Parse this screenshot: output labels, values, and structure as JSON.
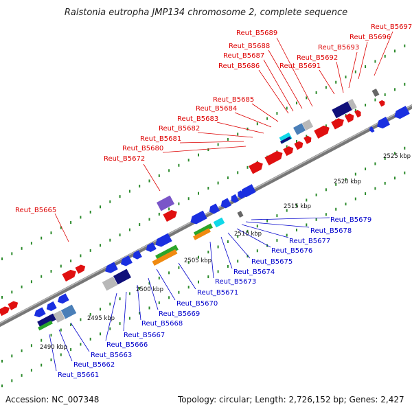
{
  "title": "Ralstonia eutropha JMP134 chromosome 2, complete sequence",
  "footer": {
    "accession": "Accession: NC_007348",
    "info": "Topology: circular; Length: 2,726,152 bp; Genes: 2,427"
  },
  "colors": {
    "label_top": "#dd0000",
    "label_bottom": "#0000cc",
    "backbone": "#888888",
    "tick": "#227722"
  },
  "kbp_labels": [
    "2490 kbp",
    "2495 kbp",
    "2500 kbp",
    "2505 kbp",
    "2510 kbp",
    "2515 kbp",
    "2520 kbp",
    "2525 kbp"
  ],
  "top_labels": [
    "Reut_B5665",
    "Reut_B5672",
    "Reut_B5680",
    "Reut_B5681",
    "Reut_B5682",
    "Reut_B5683",
    "Reut_B5684",
    "Reut_B5685",
    "Reut_B5686",
    "Reut_B5687",
    "Reut_B5688",
    "Reut_B5689",
    "Reut_B5691",
    "Reut_B5692",
    "Reut_B5693",
    "Reut_B5696",
    "Reut_B5697"
  ],
  "bottom_labels": [
    "Reut_B5661",
    "Reut_B5662",
    "Reut_B5663",
    "Reut_B5666",
    "Reut_B5667",
    "Reut_B5668",
    "Reut_B5669",
    "Reut_B5670",
    "Reut_B5671",
    "Reut_B5673",
    "Reut_B5674",
    "Reut_B5675",
    "Reut_B5676",
    "Reut_B5677",
    "Reut_B5678",
    "Reut_B5679"
  ]
}
